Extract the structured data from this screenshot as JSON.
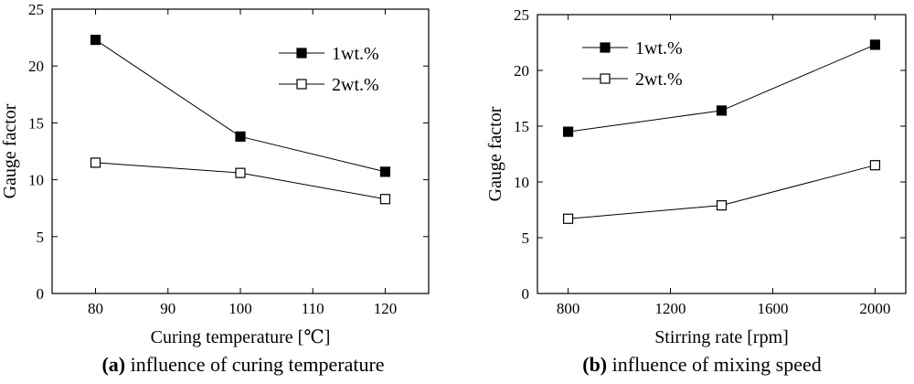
{
  "chart_data": [
    {
      "type": "line",
      "panel": "a",
      "caption_letter": "(a)",
      "caption_text": "influence of curing temperature",
      "xlabel": "Curing temperature [℃]",
      "ylabel": "Gauge factor",
      "xlim": [
        74,
        126
      ],
      "ylim": [
        0,
        25
      ],
      "xticks": [
        80,
        90,
        100,
        110,
        120
      ],
      "yticks": [
        0,
        5,
        10,
        15,
        20,
        25
      ],
      "legend_position": "top-right",
      "series": [
        {
          "name": "1wt.%",
          "marker": "filled-square",
          "x": [
            80,
            100,
            120
          ],
          "y": [
            22.3,
            13.8,
            10.7
          ]
        },
        {
          "name": "2wt.%",
          "marker": "open-square",
          "x": [
            80,
            100,
            120
          ],
          "y": [
            11.5,
            10.6,
            8.3
          ]
        }
      ]
    },
    {
      "type": "line",
      "panel": "b",
      "caption_letter": "(b)",
      "caption_text": "influence of mixing speed",
      "xlabel": "Stirring rate [rpm]",
      "ylabel": "Gauge factor",
      "xlim": [
        680,
        2120
      ],
      "ylim": [
        0,
        25
      ],
      "xticks": [
        800,
        1200,
        1600,
        2000
      ],
      "yticks": [
        0,
        5,
        10,
        15,
        20,
        25
      ],
      "legend_position": "top-left",
      "series": [
        {
          "name": "1wt.%",
          "marker": "filled-square",
          "x": [
            800,
            1400,
            2000
          ],
          "y": [
            14.5,
            16.4,
            22.3
          ]
        },
        {
          "name": "2wt.%",
          "marker": "open-square",
          "x": [
            800,
            1400,
            2000
          ],
          "y": [
            6.7,
            7.9,
            11.5
          ]
        }
      ]
    }
  ]
}
